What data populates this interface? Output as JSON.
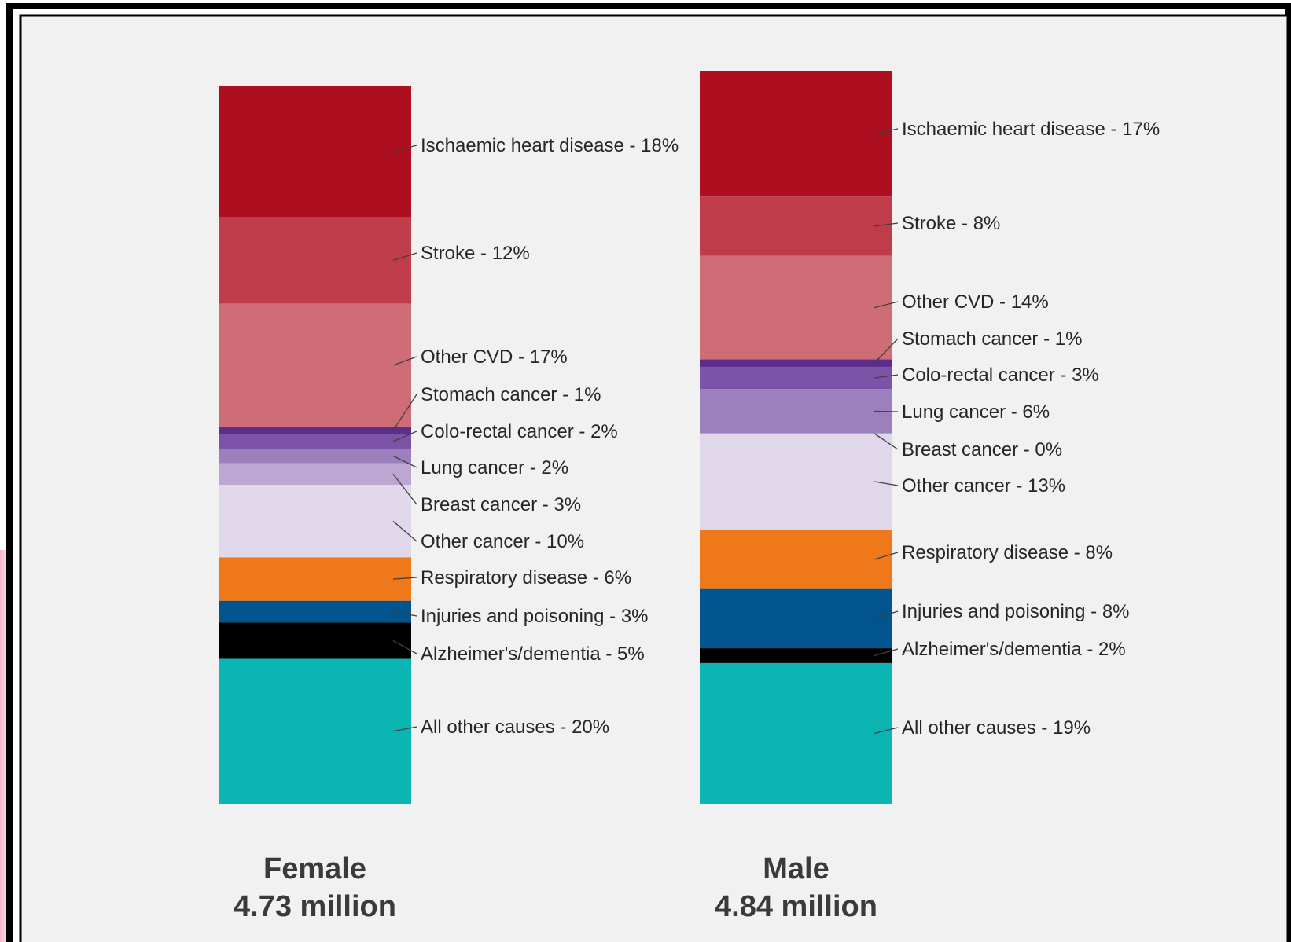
{
  "chart_data": {
    "type": "bar",
    "stacked": true,
    "legend": "none",
    "grid": false,
    "ylim": [
      0,
      100
    ],
    "categories": [
      "Female",
      "Male"
    ],
    "totals": [
      "4.73 million",
      "4.84 million"
    ],
    "colors": {
      "ischaemic": "#ad0f20",
      "stroke": "#bf3c4a",
      "other_cvd": "#cf6d76",
      "stomach": "#5b2d8d",
      "colorectal": "#7c53a6",
      "lung": "#9b80bd",
      "breast": "#bea6d3",
      "other_cancer": "#e1d7ea",
      "respiratory": "#ef781a",
      "injuries": "#02548f",
      "alzheimers": "#000000",
      "other_causes": "#0bb5b4"
    },
    "bars": [
      {
        "name": "Female",
        "total_label": "4.73 million",
        "segments": [
          {
            "key": "ischaemic",
            "label": "Ischaemic heart disease - 18%",
            "value": 18
          },
          {
            "key": "stroke",
            "label": "Stroke - 12%",
            "value": 12
          },
          {
            "key": "other_cvd",
            "label": "Other CVD - 17%",
            "value": 17
          },
          {
            "key": "stomach",
            "label": "Stomach cancer - 1%",
            "value": 1
          },
          {
            "key": "colorectal",
            "label": "Colo-rectal cancer - 2%",
            "value": 2
          },
          {
            "key": "lung",
            "label": "Lung cancer - 2%",
            "value": 2
          },
          {
            "key": "breast",
            "label": "Breast cancer - 3%",
            "value": 3
          },
          {
            "key": "other_cancer",
            "label": "Other cancer - 10%",
            "value": 10
          },
          {
            "key": "respiratory",
            "label": "Respiratory disease - 6%",
            "value": 6
          },
          {
            "key": "injuries",
            "label": "Injuries and poisoning - 3%",
            "value": 3
          },
          {
            "key": "alzheimers",
            "label": "Alzheimer's/dementia - 5%",
            "value": 5
          },
          {
            "key": "other_causes",
            "label": "All other causes - 20%",
            "value": 20
          }
        ]
      },
      {
        "name": "Male",
        "total_label": "4.84 million",
        "segments": [
          {
            "key": "ischaemic",
            "label": "Ischaemic heart disease - 17%",
            "value": 17
          },
          {
            "key": "stroke",
            "label": "Stroke - 8%",
            "value": 8
          },
          {
            "key": "other_cvd",
            "label": "Other CVD - 14%",
            "value": 14
          },
          {
            "key": "stomach",
            "label": "Stomach cancer - 1%",
            "value": 1
          },
          {
            "key": "colorectal",
            "label": "Colo-rectal cancer - 3%",
            "value": 3
          },
          {
            "key": "lung",
            "label": "Lung cancer - 6%",
            "value": 6
          },
          {
            "key": "breast",
            "label": "Breast cancer - 0%",
            "value": 0
          },
          {
            "key": "other_cancer",
            "label": "Other cancer - 13%",
            "value": 13
          },
          {
            "key": "respiratory",
            "label": "Respiratory disease - 8%",
            "value": 8
          },
          {
            "key": "injuries",
            "label": "Injuries and poisoning - 8%",
            "value": 8
          },
          {
            "key": "alzheimers",
            "label": "Alzheimer's/dementia - 2%",
            "value": 2
          },
          {
            "key": "other_causes",
            "label": "All other causes - 19%",
            "value": 19
          }
        ]
      }
    ]
  }
}
